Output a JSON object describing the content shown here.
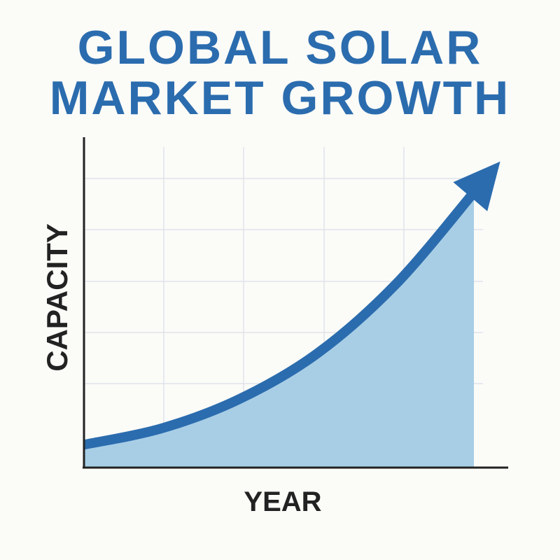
{
  "chart_data": {
    "type": "area",
    "title": "GLOBAL SOLAR MARKET GROWTH",
    "x_label": "YEAR",
    "y_label": "CAPACITY",
    "x": [
      0,
      2,
      4,
      6,
      8,
      10
    ],
    "values": [
      7,
      12,
      21,
      35,
      56,
      84
    ],
    "xlim": [
      0,
      10
    ],
    "ylim": [
      0,
      100
    ],
    "color": "#2b6cae",
    "fill_color": "#a8cee6"
  }
}
